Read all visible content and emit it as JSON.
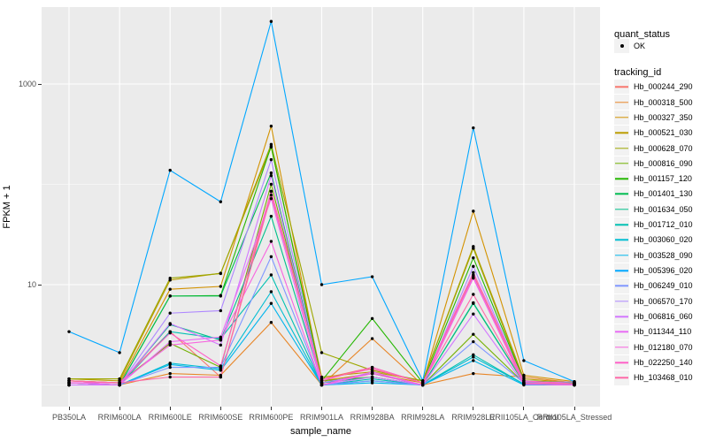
{
  "figure": {
    "panel_bg": "#EBEBEB",
    "grid_color": "#FFFFFF",
    "point_color": "#000000",
    "key_bg": "#F2F2F2",
    "tick_color": "#333333",
    "tick_label_color": "#4D4D4D"
  },
  "legend": {
    "quant_title": "quant_status",
    "quant_items": [
      {
        "label": "OK"
      }
    ],
    "tracking_title": "tracking_id"
  },
  "chart_data": {
    "type": "line",
    "title": "",
    "xlabel": "sample_name",
    "ylabel": "FPKM + 1",
    "y_scale": "log10",
    "grid": true,
    "legend_position": "right",
    "y_ticks": [
      {
        "label": "1000",
        "value": 1000
      },
      {
        "label": "10",
        "value": 10
      }
    ],
    "y_minor_breaks": [
      1,
      100
    ],
    "ylim": [
      0.85,
      5000
    ],
    "categories": [
      "PB350LA",
      "RRIM600LA",
      "RRIM600LE",
      "RRIM600SE",
      "RRIM600PE",
      "RRIM901LA",
      "RRIM928BA",
      "RRIM928LA",
      "RRIM928LE",
      "RRII105LA_Control",
      "RRII105LA_Stressed"
    ],
    "point_marker": "filled-circle",
    "series": [
      {
        "name": "Hb_000244_290",
        "color": "#F8766D",
        "values": [
          1.1,
          1.05,
          3.4,
          1.2,
          85,
          1.15,
          1.5,
          1.05,
          12.5,
          1.05,
          1.03
        ]
      },
      {
        "name": "Hb_000318_500",
        "color": "#E88526",
        "values": [
          1.05,
          1.0,
          1.3,
          1.25,
          4.2,
          1.0,
          2.9,
          1.0,
          1.3,
          1.2,
          1.05
        ]
      },
      {
        "name": "Hb_000327_350",
        "color": "#D39200",
        "values": [
          1.1,
          1.05,
          9.0,
          9.6,
          380,
          1.1,
          1.3,
          1.05,
          54,
          1.25,
          1.08
        ]
      },
      {
        "name": "Hb_000521_030",
        "color": "#BB9D00",
        "values": [
          1.15,
          1.1,
          11.1,
          13.0,
          235,
          1.2,
          1.35,
          1.1,
          24,
          1.15,
          1.05
        ]
      },
      {
        "name": "Hb_000628_070",
        "color": "#9DA700",
        "values": [
          1.15,
          1.15,
          11.6,
          12.9,
          250,
          2.1,
          1.4,
          1.1,
          23,
          1.1,
          1.05
        ]
      },
      {
        "name": "Hb_000816_090",
        "color": "#72B000",
        "values": [
          1.1,
          1.05,
          2.6,
          1.5,
          100,
          1.1,
          1.2,
          1.0,
          3.2,
          1.05,
          1.02
        ]
      },
      {
        "name": "Hb_001157_120",
        "color": "#24B700",
        "values": [
          1.05,
          1.0,
          7.7,
          7.8,
          240,
          1.1,
          4.6,
          1.05,
          18.5,
          1.1,
          1.05
        ]
      },
      {
        "name": "Hb_001401_130",
        "color": "#00BC51",
        "values": [
          1.05,
          1.0,
          7.7,
          7.7,
          130,
          1.05,
          1.3,
          1.0,
          6.5,
          1.05,
          1.02
        ]
      },
      {
        "name": "Hb_001634_050",
        "color": "#00C08B",
        "values": [
          1.0,
          1.0,
          4.0,
          2.8,
          48,
          1.05,
          1.2,
          1.0,
          6.6,
          1.05,
          1.02
        ]
      },
      {
        "name": "Hb_001712_010",
        "color": "#00C0B2",
        "values": [
          1.0,
          1.0,
          3.4,
          2.9,
          12.5,
          1.0,
          1.15,
          1.0,
          2.0,
          1.02,
          1.0
        ]
      },
      {
        "name": "Hb_003060_020",
        "color": "#00BDD2",
        "values": [
          1.0,
          1.0,
          1.65,
          1.45,
          8.5,
          1.0,
          1.1,
          1.0,
          1.9,
          1.02,
          1.0
        ]
      },
      {
        "name": "Hb_003528_090",
        "color": "#00B5EC",
        "values": [
          1.0,
          1.0,
          1.6,
          1.4,
          6.5,
          1.0,
          1.05,
          1.0,
          1.75,
          1.0,
          1.0
        ]
      },
      {
        "name": "Hb_005396_020",
        "color": "#00A7FF",
        "values": [
          3.4,
          2.1,
          138,
          67,
          4200,
          10.0,
          12.0,
          1.1,
          365,
          1.75,
          1.08
        ]
      },
      {
        "name": "Hb_006249_010",
        "color": "#7F96FF",
        "values": [
          1.05,
          1.0,
          1.5,
          1.5,
          19,
          1.0,
          1.1,
          1.0,
          2.7,
          1.05,
          1.02
        ]
      },
      {
        "name": "Hb_006570_170",
        "color": "#AE87FF",
        "values": [
          1.0,
          1.0,
          5.2,
          5.5,
          176,
          1.05,
          1.3,
          1.0,
          15.2,
          1.07,
          1.07
        ]
      },
      {
        "name": "Hb_006816_060",
        "color": "#D277FF",
        "values": [
          1.0,
          1.0,
          4.1,
          2.5,
          122,
          1.0,
          1.2,
          1.0,
          5.1,
          1.02,
          1.0
        ]
      },
      {
        "name": "Hb_011344_110",
        "color": "#E86CF4",
        "values": [
          1.05,
          1.0,
          2.7,
          3.0,
          72,
          1.0,
          1.35,
          1.0,
          12.0,
          1.02,
          1.0
        ]
      },
      {
        "name": "Hb_012180_070",
        "color": "#F863DF",
        "values": [
          1.05,
          1.05,
          2.5,
          2.8,
          27,
          1.0,
          1.3,
          1.0,
          11.6,
          1.02,
          1.0
        ]
      },
      {
        "name": "Hb_022250_140",
        "color": "#FF61C7",
        "values": [
          1.1,
          1.05,
          3.3,
          1.55,
          85,
          1.1,
          1.5,
          1.05,
          13.2,
          1.1,
          1.03
        ]
      },
      {
        "name": "Hb_103468_010",
        "color": "#FF68A8",
        "values": [
          1.1,
          1.05,
          1.2,
          1.2,
          78,
          1.14,
          1.45,
          1.05,
          8.0,
          1.05,
          1.03
        ]
      }
    ]
  }
}
